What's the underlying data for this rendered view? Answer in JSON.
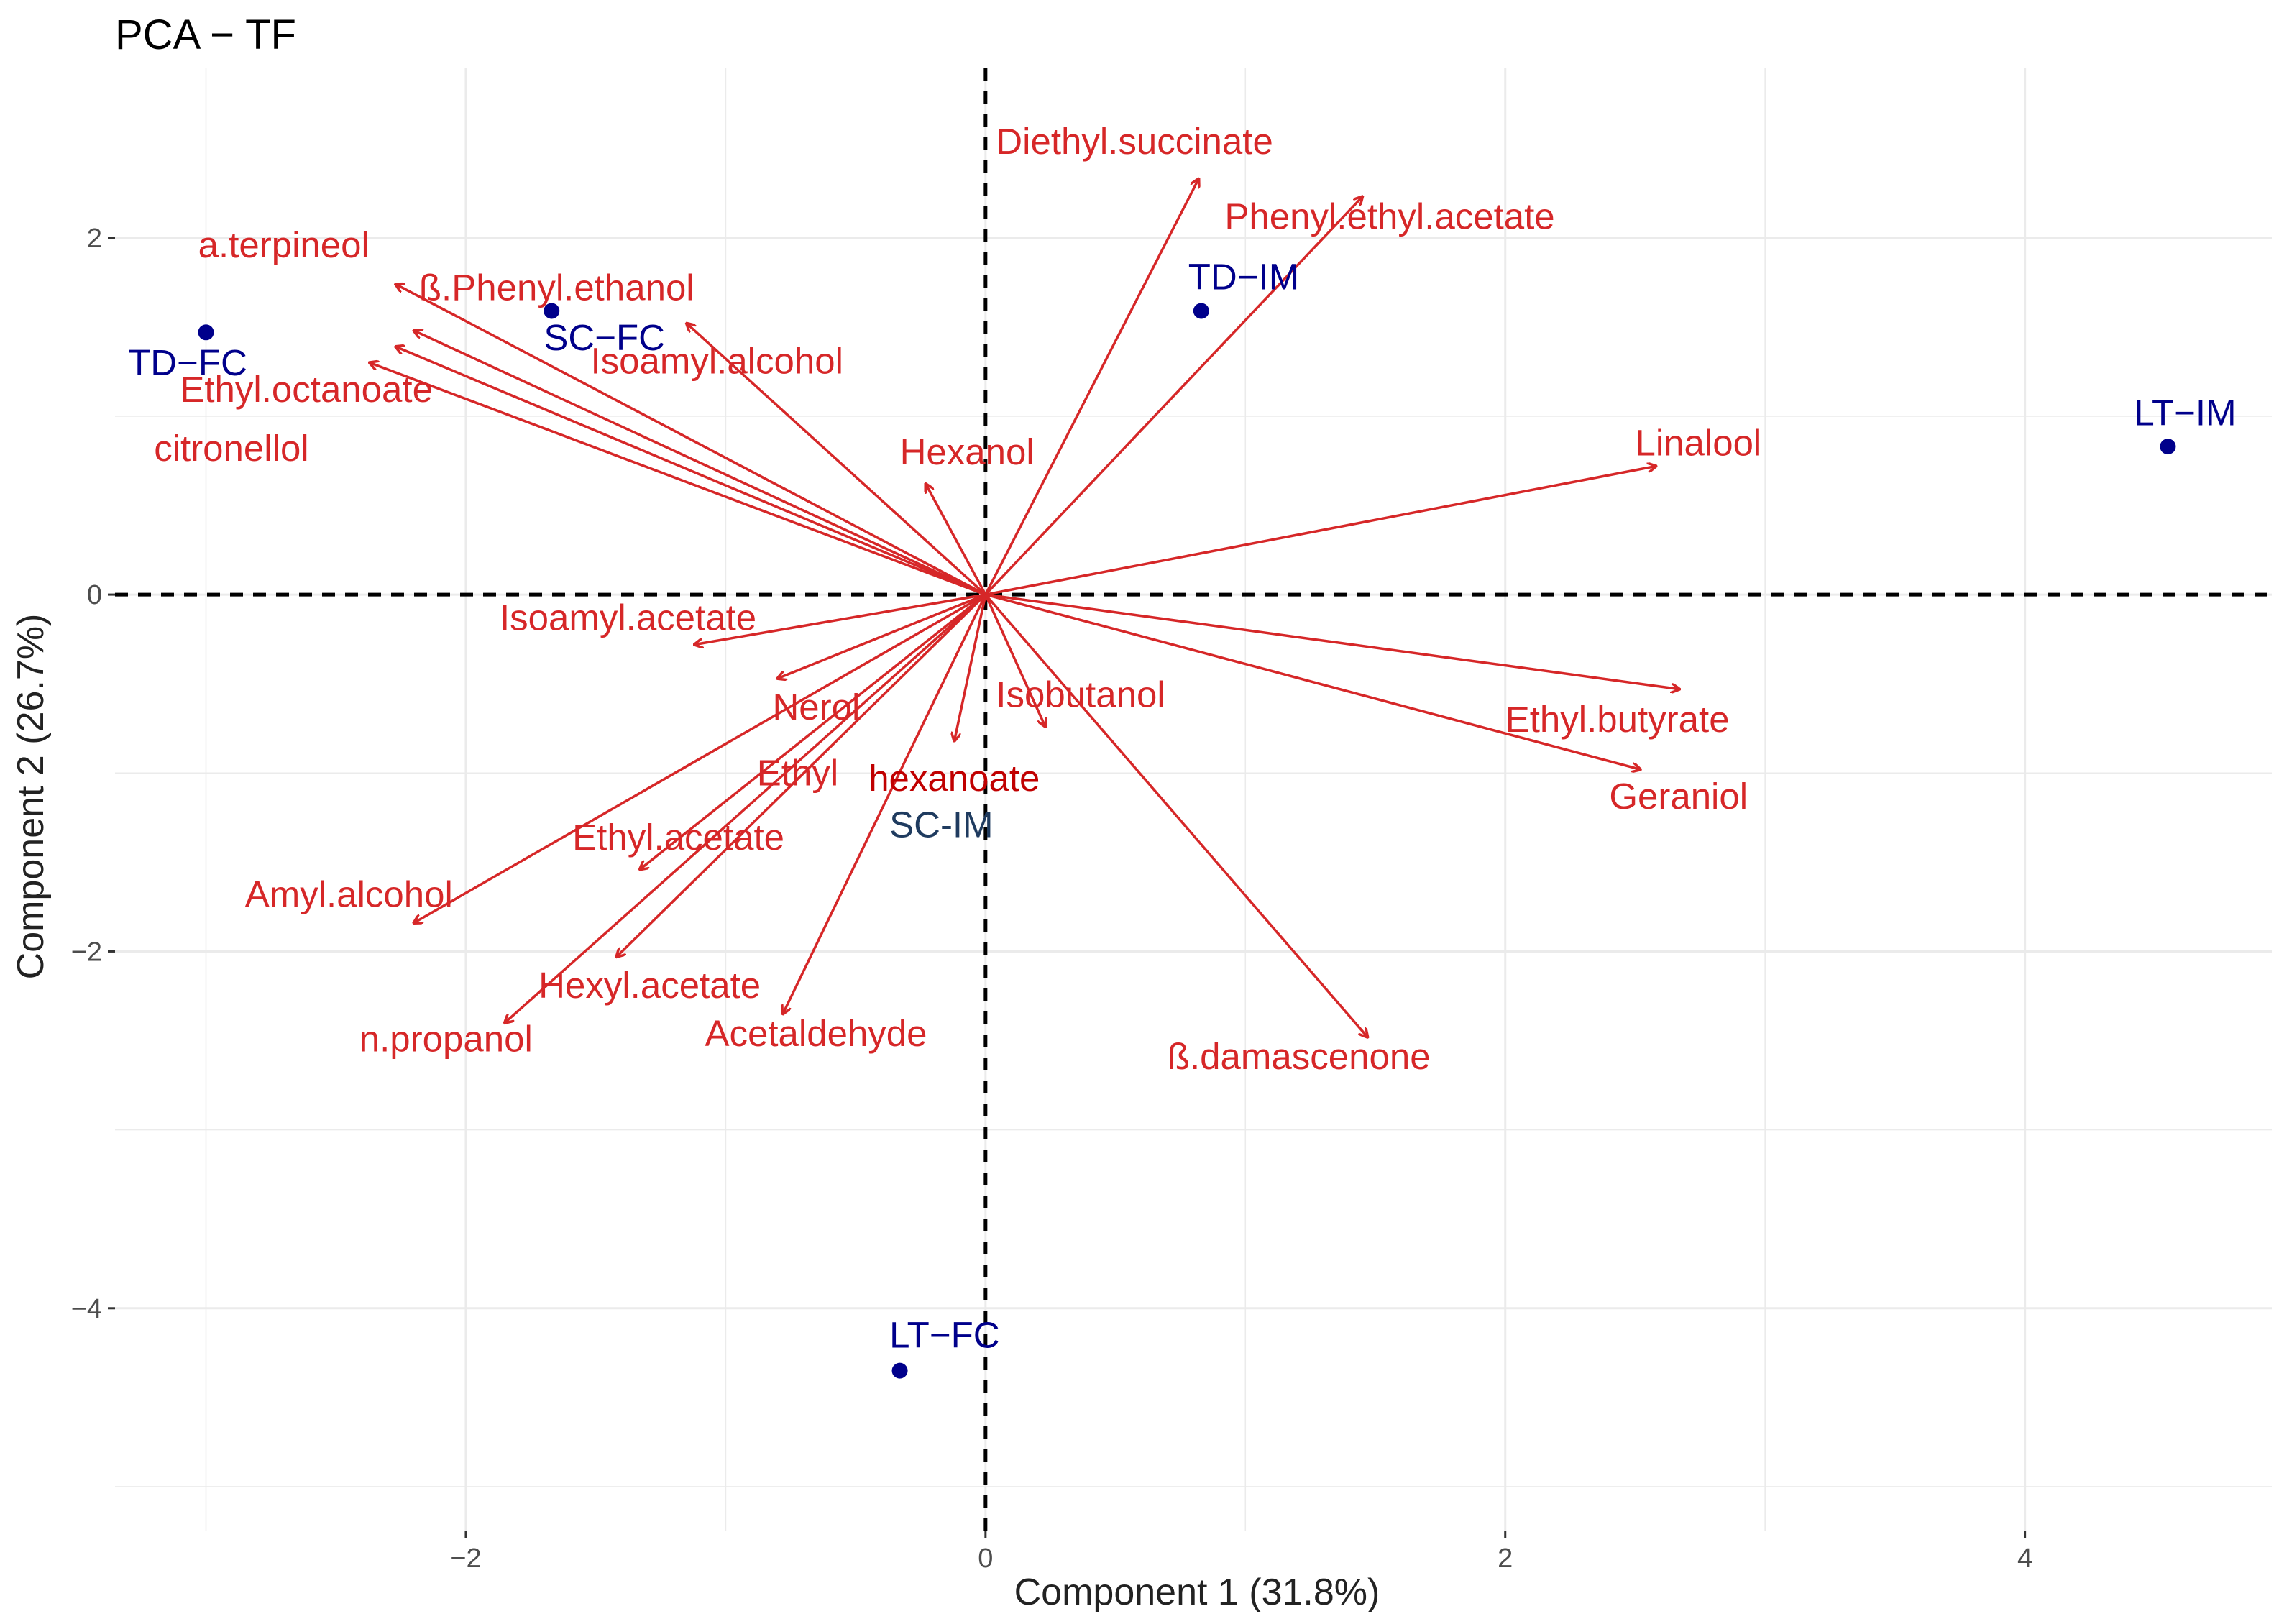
{
  "chart_data": {
    "type": "scatter",
    "subtype": "pca-biplot",
    "title": "PCA − TF",
    "xlabel": "Component 1 (31.8%)",
    "ylabel": "Component 2 (26.7%)",
    "xlim": [
      -3.35,
      4.95
    ],
    "ylim": [
      -5.25,
      2.95
    ],
    "x_ticks": [
      -2,
      0,
      2,
      4
    ],
    "y_ticks": [
      -4,
      -2,
      0,
      2
    ],
    "x_tick_labels": [
      "−2",
      "0",
      "2",
      "4"
    ],
    "y_tick_labels": [
      "−4",
      "−2",
      "0",
      "2"
    ],
    "grid": true,
    "reference_lines": [
      {
        "axis": "x",
        "value": 0,
        "style": "dashed"
      },
      {
        "axis": "y",
        "value": 0,
        "style": "dashed"
      }
    ],
    "colors": {
      "variables": "#d62728",
      "samples": "#00008b",
      "sample_alt": "#1f3b5f",
      "hexanoate_label": "#c00000",
      "grid": "#ebebeb",
      "reference": "#000000"
    },
    "samples": [
      {
        "name": "TD−FC",
        "x": -3.0,
        "y": 1.47
      },
      {
        "name": "SC−FC",
        "x": -1.67,
        "y": 1.59
      },
      {
        "name": "TD−IM",
        "x": 0.83,
        "y": 1.59
      },
      {
        "name": "LT−IM",
        "x": 4.55,
        "y": 0.83
      },
      {
        "name": "SC-IM",
        "x": -0.05,
        "y": -1.4
      },
      {
        "name": "LT−FC",
        "x": -0.33,
        "y": -4.35
      }
    ],
    "variables": [
      {
        "name": "Diethyl.succinate",
        "x": 0.82,
        "y": 2.33
      },
      {
        "name": "Phenyl.ethyl.acetate",
        "x": 1.45,
        "y": 2.23
      },
      {
        "name": "a.terpineol",
        "x": -2.27,
        "y": 1.74
      },
      {
        "name": "ß.Phenyl.ethanol",
        "x": -2.2,
        "y": 1.48
      },
      {
        "name": "Isoamyl.alcohol",
        "x": -1.15,
        "y": 1.52
      },
      {
        "name": "Ethyl.octanoate",
        "x": -2.27,
        "y": 1.39
      },
      {
        "name": "citronellol",
        "x": -2.37,
        "y": 1.3
      },
      {
        "name": "Hexanol",
        "x": -0.23,
        "y": 0.62
      },
      {
        "name": "Linalool",
        "x": 2.58,
        "y": 0.72
      },
      {
        "name": "Isoamyl.acetate",
        "x": -1.12,
        "y": -0.28
      },
      {
        "name": "Nerol",
        "x": -0.8,
        "y": -0.47
      },
      {
        "name": "Isobutanol",
        "x": 0.23,
        "y": -0.74
      },
      {
        "name": "Ethyl.butyrate",
        "x": 2.67,
        "y": -0.53
      },
      {
        "name": "Geraniol",
        "x": 2.52,
        "y": -0.98
      },
      {
        "name": "Ethyl hexanoate",
        "x": -0.12,
        "y": -0.82
      },
      {
        "name": "Ethyl.acetate",
        "x": -1.33,
        "y": -1.54
      },
      {
        "name": "Amyl.alcohol",
        "x": -2.2,
        "y": -1.84
      },
      {
        "name": "Hexyl.acetate",
        "x": -1.42,
        "y": -2.03
      },
      {
        "name": "n.propanol",
        "x": -1.85,
        "y": -2.4
      },
      {
        "name": "Acetaldehyde",
        "x": -0.78,
        "y": -2.35
      },
      {
        "name": "ß.damascenone",
        "x": 1.47,
        "y": -2.48
      }
    ],
    "variable_labels": [
      {
        "text": "Diethyl.succinate",
        "x": 0.04,
        "y": 2.47,
        "anchor": "start"
      },
      {
        "text": "Phenyl.ethyl.acetate",
        "x": 0.92,
        "y": 2.05,
        "anchor": "start"
      },
      {
        "text": "a.terpineol",
        "x": -3.03,
        "y": 1.89,
        "anchor": "start"
      },
      {
        "text": "ß.Phenyl.ethanol",
        "x": -2.18,
        "y": 1.65,
        "anchor": "start"
      },
      {
        "text": "Isoamyl.alcohol",
        "x": -1.52,
        "y": 1.24,
        "anchor": "start"
      },
      {
        "text": "Ethyl.octanoate",
        "x": -3.1,
        "y": 1.08,
        "anchor": "start"
      },
      {
        "text": "citronellol",
        "x": -3.2,
        "y": 0.75,
        "anchor": "start"
      },
      {
        "text": "Hexanol",
        "x": -0.33,
        "y": 0.73,
        "anchor": "start"
      },
      {
        "text": "Linalool",
        "x": 2.5,
        "y": 0.78,
        "anchor": "start"
      },
      {
        "text": "Isoamyl.acetate",
        "x": -1.87,
        "y": -0.2,
        "anchor": "start"
      },
      {
        "text": "Nerol",
        "x": -0.82,
        "y": -0.7,
        "anchor": "start"
      },
      {
        "text": "Isobutanol",
        "x": 0.04,
        "y": -0.63,
        "anchor": "start"
      },
      {
        "text": "Ethyl.butyrate",
        "x": 2.0,
        "y": -0.77,
        "anchor": "start"
      },
      {
        "text": "Geraniol",
        "x": 2.4,
        "y": -1.2,
        "anchor": "start"
      },
      {
        "text": "Ethyl",
        "x": -0.88,
        "y": -1.07,
        "anchor": "start"
      },
      {
        "text": "hexanoate",
        "x": -0.45,
        "y": -1.1,
        "anchor": "start",
        "color": "hexanoate_label"
      },
      {
        "text": "Ethyl.acetate",
        "x": -1.59,
        "y": -1.43,
        "anchor": "start"
      },
      {
        "text": "Amyl.alcohol",
        "x": -2.85,
        "y": -1.75,
        "anchor": "start"
      },
      {
        "text": "Hexyl.acetate",
        "x": -1.72,
        "y": -2.26,
        "anchor": "start"
      },
      {
        "text": "n.propanol",
        "x": -2.41,
        "y": -2.56,
        "anchor": "start"
      },
      {
        "text": "Acetaldehyde",
        "x": -1.08,
        "y": -2.53,
        "anchor": "start"
      },
      {
        "text": "ß.damascenone",
        "x": 0.7,
        "y": -2.66,
        "anchor": "start"
      }
    ],
    "sample_labels": [
      {
        "text": "TD−FC",
        "x": -3.3,
        "y": 1.23,
        "anchor": "start",
        "color": "samples"
      },
      {
        "text": "SC−FC",
        "x": -1.7,
        "y": 1.37,
        "anchor": "start",
        "color": "samples"
      },
      {
        "text": "TD−IM",
        "x": 0.78,
        "y": 1.71,
        "anchor": "start",
        "color": "samples"
      },
      {
        "text": "LT−IM",
        "x": 4.42,
        "y": 0.95,
        "anchor": "start",
        "color": "samples"
      },
      {
        "text": "SC-IM",
        "x": -0.37,
        "y": -1.36,
        "anchor": "start",
        "color": "sample_alt"
      },
      {
        "text": "LT−FC",
        "x": -0.37,
        "y": -4.22,
        "anchor": "start",
        "color": "samples"
      }
    ]
  }
}
